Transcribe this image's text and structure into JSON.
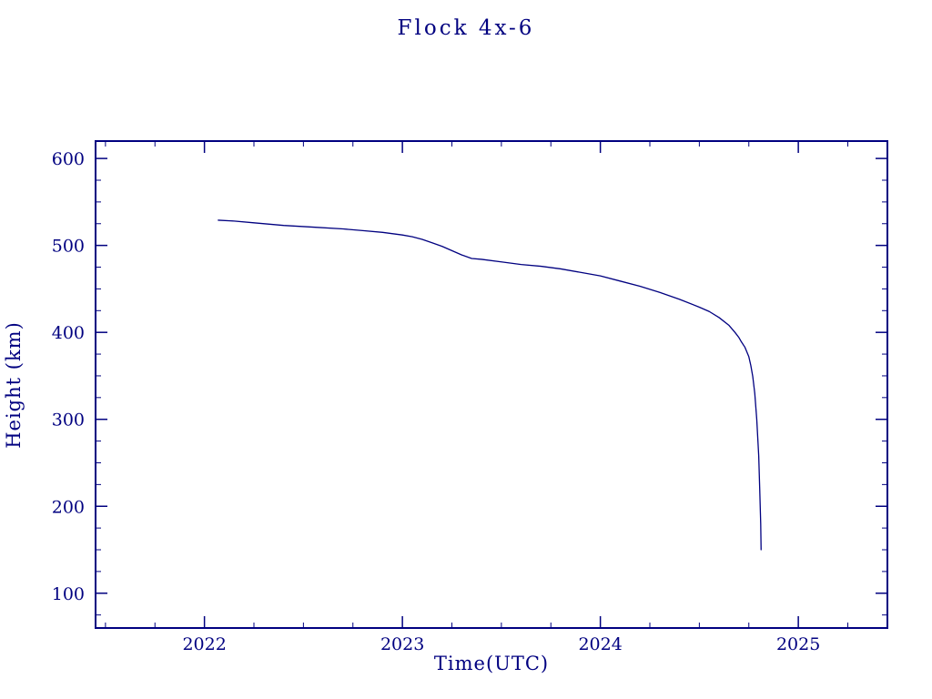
{
  "page": {
    "background_color": "#ffffff",
    "accent_color": "#000080"
  },
  "chart_data": {
    "type": "line",
    "title": "Flock 4x-6",
    "xlabel": "Time(UTC)",
    "ylabel": "Height (km)",
    "xlim": [
      2021.45,
      2025.45
    ],
    "ylim": [
      60,
      620
    ],
    "x_major_ticks": [
      2022,
      2023,
      2024,
      2025
    ],
    "x_major_tick_labels": [
      "2022",
      "2023",
      "2024",
      "2025"
    ],
    "y_major_ticks": [
      100,
      200,
      300,
      400,
      500,
      600
    ],
    "y_major_tick_labels": [
      "100",
      "200",
      "300",
      "400",
      "500",
      "600"
    ],
    "x_minor_step": 0.25,
    "y_minor_step": 25,
    "grid": false,
    "legend_position": "none",
    "line_color": "#000080",
    "frame_color": "#000080",
    "series": [
      {
        "name": "Flock 4x-6 height",
        "points": [
          [
            2022.07,
            529
          ],
          [
            2022.15,
            528
          ],
          [
            2022.25,
            526
          ],
          [
            2022.4,
            523
          ],
          [
            2022.55,
            521
          ],
          [
            2022.7,
            519
          ],
          [
            2022.8,
            517
          ],
          [
            2022.9,
            515
          ],
          [
            2023.0,
            512
          ],
          [
            2023.05,
            510
          ],
          [
            2023.1,
            507
          ],
          [
            2023.15,
            503
          ],
          [
            2023.2,
            499
          ],
          [
            2023.25,
            494
          ],
          [
            2023.3,
            489
          ],
          [
            2023.35,
            485
          ],
          [
            2023.4,
            484
          ],
          [
            2023.5,
            481
          ],
          [
            2023.6,
            478
          ],
          [
            2023.7,
            476
          ],
          [
            2023.8,
            473
          ],
          [
            2023.9,
            469
          ],
          [
            2024.0,
            465
          ],
          [
            2024.1,
            459
          ],
          [
            2024.2,
            453
          ],
          [
            2024.3,
            446
          ],
          [
            2024.4,
            438
          ],
          [
            2024.5,
            429
          ],
          [
            2024.55,
            424
          ],
          [
            2024.6,
            417
          ],
          [
            2024.65,
            408
          ],
          [
            2024.68,
            400
          ],
          [
            2024.7,
            394
          ],
          [
            2024.71,
            390
          ],
          [
            2024.73,
            383
          ],
          [
            2024.75,
            372
          ],
          [
            2024.76,
            362
          ],
          [
            2024.77,
            349
          ],
          [
            2024.78,
            330
          ],
          [
            2024.79,
            300
          ],
          [
            2024.8,
            258
          ],
          [
            2024.805,
            220
          ],
          [
            2024.81,
            180
          ],
          [
            2024.812,
            150
          ]
        ]
      }
    ]
  }
}
